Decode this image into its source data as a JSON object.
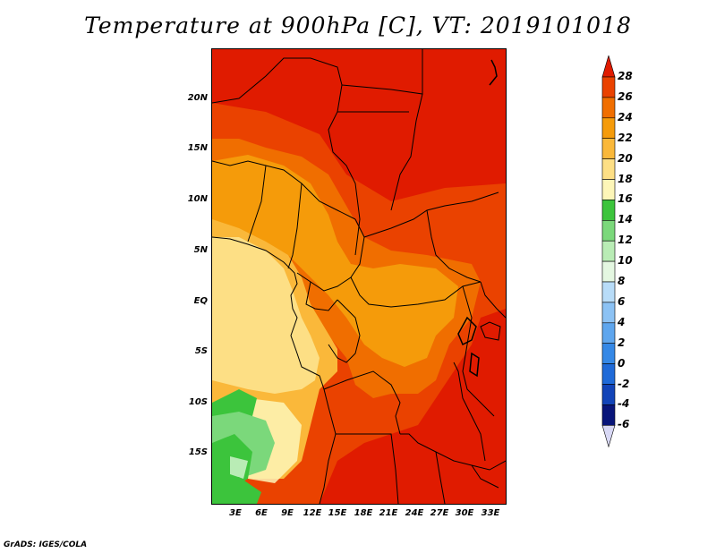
{
  "title": "Temperature at 900hPa [C], VT: 2019101018",
  "footer": "GrADS: IGES/COLA",
  "map": {
    "region": "Central Africa",
    "lon_range": [
      0,
      35
    ],
    "lat_range": [
      -20,
      25
    ],
    "lat_ticks": [
      "20N",
      "15N",
      "10N",
      "5N",
      "EQ",
      "5S",
      "10S",
      "15S"
    ],
    "lon_ticks": [
      "3E",
      "6E",
      "9E",
      "12E",
      "15E",
      "18E",
      "21E",
      "24E",
      "27E",
      "30E",
      "33E"
    ]
  },
  "colorbar": {
    "labels": [
      "28",
      "26",
      "24",
      "22",
      "20",
      "18",
      "16",
      "14",
      "12",
      "10",
      "8",
      "6",
      "4",
      "2",
      "0",
      "-2",
      "-4",
      "-6"
    ],
    "colors": [
      "#e01b00",
      "#ea4200",
      "#f06e00",
      "#f59b0a",
      "#fab83a",
      "#fddf85",
      "#fdf6b8",
      "#3cc43c",
      "#7bd87b",
      "#b9ecb5",
      "#e4f7e1",
      "#b8dcf8",
      "#8cc2f4",
      "#5fa6ee",
      "#3588e6",
      "#1f6ad8",
      "#1244b8",
      "#08157a",
      "#d8d8f5"
    ]
  },
  "chart_data": {
    "type": "heatmap",
    "title": "Temperature at 900hPa [C], VT: 2019101018",
    "variable": "Temperature",
    "level": "900hPa",
    "units": "C",
    "valid_time": "2019101018",
    "x": [
      "3E",
      "6E",
      "9E",
      "12E",
      "15E",
      "18E",
      "21E",
      "24E",
      "27E",
      "30E",
      "33E"
    ],
    "y": [
      "20N",
      "15N",
      "10N",
      "5N",
      "EQ",
      "5S",
      "10S",
      "15S"
    ],
    "colorbar_levels": [
      -6,
      -4,
      -2,
      0,
      2,
      4,
      6,
      8,
      10,
      12,
      14,
      16,
      18,
      20,
      22,
      24,
      26,
      28
    ]
  }
}
